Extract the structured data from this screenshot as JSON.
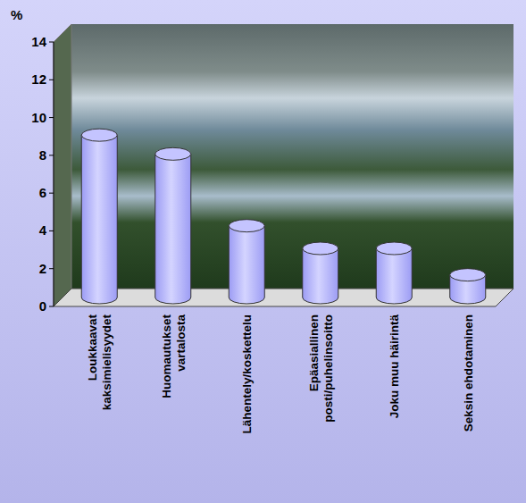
{
  "chart_data": {
    "type": "bar",
    "y_label": "%",
    "categories": [
      "Loukkaavat kaksimielisyydet",
      "Huomautukset vartalosta",
      "Lähentely/koskettelu",
      "Epäasiallinen posti/puhelinsoitto",
      "Joku muu häirintä",
      "Seksin ehdotaminen"
    ],
    "values": [
      8.6,
      7.6,
      3.8,
      2.6,
      2.6,
      1.2
    ],
    "color": "#9c9cf4",
    "ylim": [
      0,
      14
    ],
    "yticks": [
      0,
      2,
      4,
      6,
      8,
      10,
      12,
      14
    ],
    "grid": false
  }
}
